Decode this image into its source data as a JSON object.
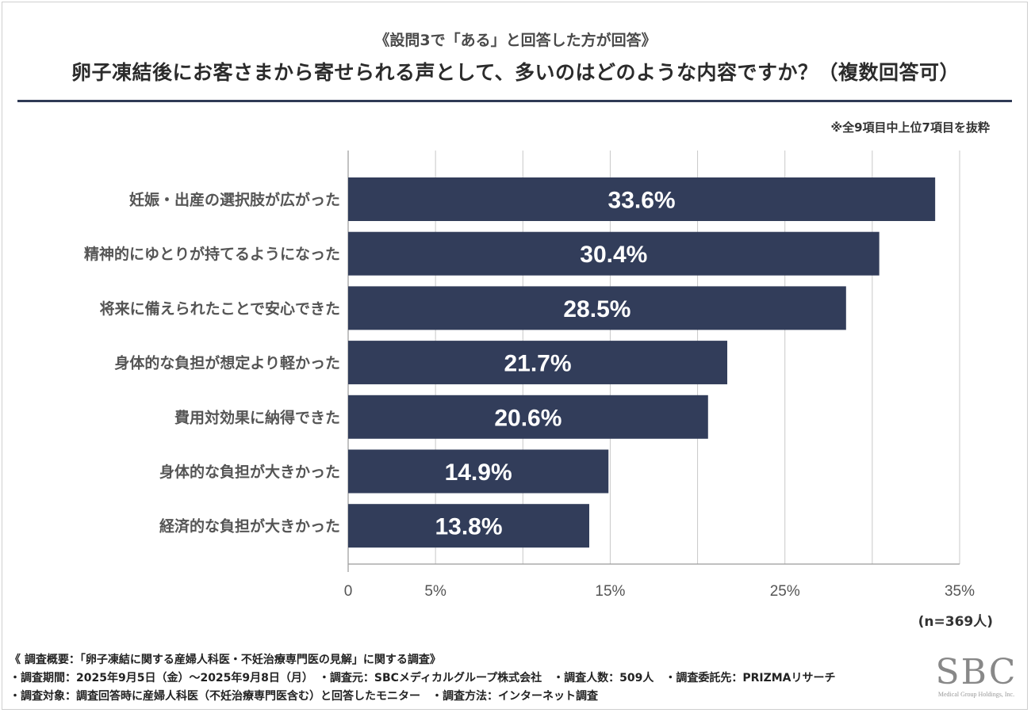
{
  "header": {
    "subtitle": "《設問3で「ある」と回答した方が回答》",
    "title": "卵子凍結後にお客さまから寄せられる声として、多いのはどのような内容ですか？（複数回答可）",
    "note": "※全9項目中上位7項目を抜粋"
  },
  "colors": {
    "bar": "#323d5a",
    "bar_label": "#ffffff",
    "grid": "#c8c8c8",
    "rule": "#2f3a55"
  },
  "chart_data": {
    "type": "bar",
    "orientation": "horizontal",
    "categories": [
      "妊娠・出産の選択肢が広がった",
      "精神的にゆとりが持てるようになった",
      "将来に備えられたことで安心できた",
      "身体的な負担が想定より軽かった",
      "費用対効果に納得できた",
      "身体的な負担が大きかった",
      "経済的な負担が大きかった"
    ],
    "values": [
      33.6,
      30.4,
      28.5,
      21.7,
      20.6,
      14.9,
      13.8
    ],
    "value_labels": [
      "33.6%",
      "30.4%",
      "28.5%",
      "21.7%",
      "20.6%",
      "14.9%",
      "13.8%"
    ],
    "xlim": [
      0,
      35
    ],
    "ticks": [
      0,
      5,
      10,
      15,
      20,
      25,
      30,
      35
    ],
    "tick_labels": [
      "0",
      "5%",
      "",
      "15%",
      "",
      "25%",
      "",
      "35%"
    ],
    "grid": true,
    "n_label": "(n=369人)"
  },
  "footer": {
    "line1": "《 調査概要：「卵子凍結に関する産婦人科医・不妊治療専門医の見解」に関する調査》",
    "line2": "・調査期間：2025年9月5日（金）〜2025年9月8日（月）　・調査元：SBCメディカルグループ株式会社　・調査人数：509人　・調査委託先：PRIZMAリサーチ",
    "line3": "・調査対象：調査回答時に産婦人科医（不妊治療専門医含む）と回答したモニター　・調査方法：インターネット調査"
  },
  "logo": {
    "text": "SBC",
    "sub": "Medical Group Holdings, Inc."
  }
}
